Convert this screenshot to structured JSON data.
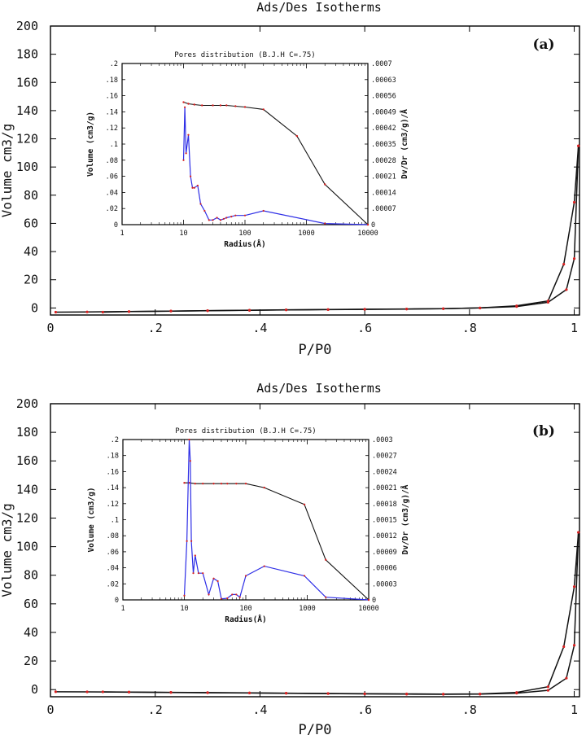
{
  "figure": {
    "panels": [
      "(a)",
      "(b)"
    ]
  },
  "colors": {
    "line": "#111111",
    "marker": "#d62020",
    "pore_series": "#2e2ee6",
    "frame": "#000000"
  },
  "chart_data": [
    {
      "panel": "(a)",
      "type": "line",
      "title": "Ads/Des Isotherms",
      "xlabel": "P/P0",
      "ylabel": "Volume cm3/g",
      "xlim": [
        0,
        1.01
      ],
      "ylim": [
        -5,
        200
      ],
      "xticks": [
        0,
        0.2,
        0.4,
        0.6,
        0.8,
        1
      ],
      "xticklabels": [
        "0",
        ".2",
        ".4",
        ".6",
        ".8",
        "1"
      ],
      "yticks": [
        0,
        20,
        40,
        60,
        80,
        100,
        120,
        140,
        160,
        180,
        200
      ],
      "yticklabels": [
        "0",
        "20",
        "40",
        "60",
        "80",
        "100",
        "120",
        "140",
        "160",
        "180",
        "200"
      ],
      "grid": false,
      "series": [
        {
          "x": [
            0.01,
            0.07,
            0.15,
            0.23,
            0.3,
            0.38,
            0.45,
            0.53,
            0.6,
            0.68,
            0.75,
            0.82,
            0.89,
            0.95,
            0.985,
            1.0,
            1.008
          ],
          "y": [
            -3,
            -2.8,
            -2.5,
            -2.2,
            -2.0,
            -1.7,
            -1.4,
            -1.2,
            -1.0,
            -0.8,
            -0.5,
            0,
            1,
            4,
            13,
            35,
            115
          ]
        },
        {
          "x": [
            1.008,
            1.0,
            0.98,
            0.95,
            0.89,
            0.82,
            0.75,
            0.68,
            0.6,
            0.53,
            0.45,
            0.38,
            0.3,
            0.23,
            0.15,
            0.1
          ],
          "y": [
            115,
            75,
            31,
            5,
            1.5,
            0,
            -0.5,
            -0.7,
            -0.9,
            -1.1,
            -1.3,
            -1.6,
            -1.9,
            -2.2,
            -2.6,
            -3
          ]
        }
      ],
      "inset": {
        "title": "Pores distribution (B.J.H C=.75)",
        "xlabel": "Radius(Å)",
        "ylabel": "Volume (cm3/g)",
        "y2label": "Dv/Dr (cm3/g)/Å",
        "xscale": "log",
        "xlim": [
          1,
          10000
        ],
        "xticklabels": [
          "1",
          "10",
          "100",
          "1000",
          "10000"
        ],
        "ylim": [
          0,
          0.2
        ],
        "yticklabels": [
          ".2",
          ".18",
          ".16",
          ".14",
          ".12",
          ".1",
          ".08",
          ".06",
          ".04",
          ".02",
          "0"
        ],
        "y2lim": [
          0,
          0.0007
        ],
        "y2ticklabels": [
          ".0007",
          ".00063",
          ".00056",
          ".00049",
          ".00042",
          ".00035",
          ".00028",
          ".00021",
          ".00014",
          ".00007",
          "0"
        ],
        "cumulative": {
          "x": [
            10,
            12,
            15,
            20,
            30,
            40,
            50,
            70,
            100,
            200,
            700,
            2000,
            10000
          ],
          "y": [
            0.152,
            0.15,
            0.149,
            0.148,
            0.148,
            0.148,
            0.148,
            0.147,
            0.146,
            0.143,
            0.11,
            0.05,
            0.0
          ]
        },
        "distribution": {
          "x": [
            10,
            10.5,
            11,
            12,
            13,
            14,
            15,
            17,
            19,
            22,
            26,
            30,
            35,
            40,
            45,
            50,
            60,
            70,
            100,
            200,
            2000,
            10000
          ],
          "y": [
            0.00028,
            0.00051,
            0.00031,
            0.00039,
            0.00021,
            0.00016,
            0.00016,
            0.00017,
            9e-05,
            6e-05,
            2e-05,
            2e-05,
            3e-05,
            2e-05,
            2.5e-05,
            3e-05,
            3.5e-05,
            4e-05,
            4e-05,
            6e-05,
            5e-06,
            0.0
          ]
        }
      }
    },
    {
      "panel": "(b)",
      "type": "line",
      "title": "Ads/Des Isotherms",
      "xlabel": "P/P0",
      "ylabel": "Volume cm3/g",
      "xlim": [
        0,
        1.01
      ],
      "ylim": [
        -5,
        200
      ],
      "xticks": [
        0,
        0.2,
        0.4,
        0.6,
        0.8,
        1
      ],
      "xticklabels": [
        "0",
        ".2",
        ".4",
        ".6",
        ".8",
        "1"
      ],
      "yticks": [
        0,
        20,
        40,
        60,
        80,
        100,
        120,
        140,
        160,
        180,
        200
      ],
      "yticklabels": [
        "0",
        "20",
        "40",
        "60",
        "80",
        "100",
        "120",
        "140",
        "160",
        "180",
        "200"
      ],
      "grid": false,
      "series": [
        {
          "x": [
            0.01,
            0.07,
            0.15,
            0.23,
            0.3,
            0.38,
            0.45,
            0.53,
            0.6,
            0.68,
            0.75,
            0.82,
            0.89,
            0.95,
            0.985,
            1.0,
            1.008
          ],
          "y": [
            -1.5,
            -1.6,
            -1.8,
            -2.0,
            -2.2,
            -2.4,
            -2.6,
            -2.8,
            -3.0,
            -3.2,
            -3.3,
            -3.2,
            -2.5,
            -0.5,
            8,
            31,
            110
          ]
        },
        {
          "x": [
            1.008,
            1.0,
            0.98,
            0.95,
            0.89,
            0.82,
            0.75,
            0.68,
            0.6,
            0.53,
            0.45,
            0.38,
            0.3,
            0.23,
            0.15,
            0.1
          ],
          "y": [
            110,
            72,
            30,
            2,
            -2,
            -3,
            -3.1,
            -3.0,
            -2.9,
            -2.7,
            -2.5,
            -2.3,
            -2.1,
            -1.9,
            -1.7,
            -1.6
          ]
        }
      ],
      "inset": {
        "title": "Pores distribution (B.J.H C=.75)",
        "xlabel": "Radius(Å)",
        "ylabel": "Volume (cm3/g)",
        "y2label": "Dv/Dr (cm3/g)/Å",
        "xscale": "log",
        "xlim": [
          1,
          10000
        ],
        "xticklabels": [
          "1",
          "10",
          "100",
          "1000",
          "10000"
        ],
        "ylim": [
          0,
          0.2
        ],
        "yticklabels": [
          ".2",
          ".18",
          ".16",
          ".14",
          ".12",
          ".1",
          ".08",
          ".06",
          ".04",
          ".02",
          "0"
        ],
        "y2lim": [
          0,
          0.0003
        ],
        "y2ticklabels": [
          ".0003",
          ".00027",
          ".00024",
          ".00021",
          ".00018",
          ".00015",
          ".00012",
          ".00009",
          ".00006",
          ".00003",
          "0"
        ],
        "cumulative": {
          "x": [
            10,
            12,
            15,
            20,
            30,
            40,
            50,
            70,
            100,
            200,
            900,
            2000,
            10000
          ],
          "y": [
            0.146,
            0.146,
            0.145,
            0.145,
            0.145,
            0.145,
            0.145,
            0.145,
            0.145,
            0.14,
            0.119,
            0.05,
            0.0
          ]
        },
        "distribution": {
          "x": [
            10,
            11,
            12,
            12.5,
            13,
            14,
            15,
            17,
            20,
            25,
            30,
            35,
            40,
            50,
            60,
            70,
            80,
            100,
            200,
            900,
            2000,
            10000
          ],
          "y": [
            8e-06,
            0.00011,
            0.0003,
            0.00026,
            0.00011,
            5e-05,
            8.3e-05,
            5e-05,
            5e-05,
            1e-05,
            4e-05,
            3.5e-05,
            2e-06,
            3e-06,
            1e-05,
            1e-05,
            5e-06,
            4.5e-05,
            6.3e-05,
            4.5e-05,
            5e-06,
            0.0
          ]
        }
      }
    }
  ]
}
